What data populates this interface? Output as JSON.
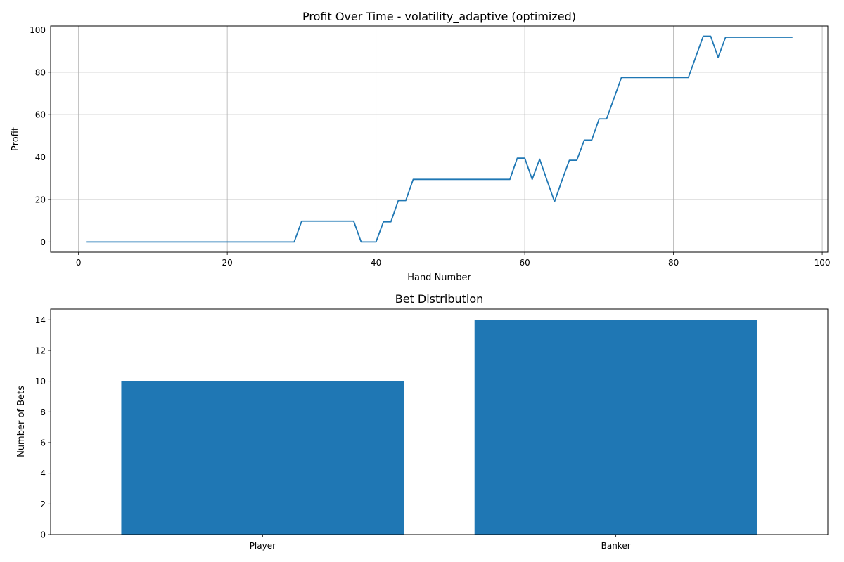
{
  "chart_data": [
    {
      "type": "line",
      "title": "Profit Over Time - volatility_adaptive (optimized)",
      "xlabel": "Hand Number",
      "ylabel": "Profit",
      "xlim": [
        -3.75,
        100.75
      ],
      "ylim": [
        -4.85,
        101.8
      ],
      "xticks": [
        0,
        20,
        40,
        60,
        80,
        100
      ],
      "yticks": [
        0,
        20,
        40,
        60,
        80,
        100
      ],
      "grid": true,
      "legend": "none",
      "colors": {
        "line": "#1f77b4",
        "grid": "#b0b0b0"
      },
      "series": [
        {
          "x": [
            1,
            29,
            30,
            37,
            38,
            40,
            41,
            42,
            43,
            44,
            45,
            58,
            59,
            60,
            61,
            62,
            64,
            65,
            66,
            67,
            68,
            69,
            70,
            71,
            73,
            82,
            84,
            85,
            86,
            87,
            96
          ],
          "values": [
            0,
            0,
            9.8,
            9.8,
            0,
            0,
            9.5,
            9.5,
            19.5,
            19.5,
            29.5,
            29.5,
            39.5,
            39.5,
            29.5,
            39,
            19,
            29,
            38.5,
            38.5,
            48,
            48,
            58,
            58,
            77.5,
            77.5,
            97,
            97,
            87,
            96.5,
            96.5
          ]
        }
      ]
    },
    {
      "type": "bar",
      "title": "Bet Distribution",
      "xlabel": "",
      "ylabel": "Number of Bets",
      "categories": [
        "Player",
        "Banker"
      ],
      "values": [
        10,
        14
      ],
      "ylim": [
        0,
        14.7
      ],
      "yticks": [
        0,
        2,
        4,
        6,
        8,
        10,
        12,
        14
      ],
      "grid": false,
      "legend": "none",
      "colors": {
        "bar": "#1f77b4"
      }
    }
  ]
}
